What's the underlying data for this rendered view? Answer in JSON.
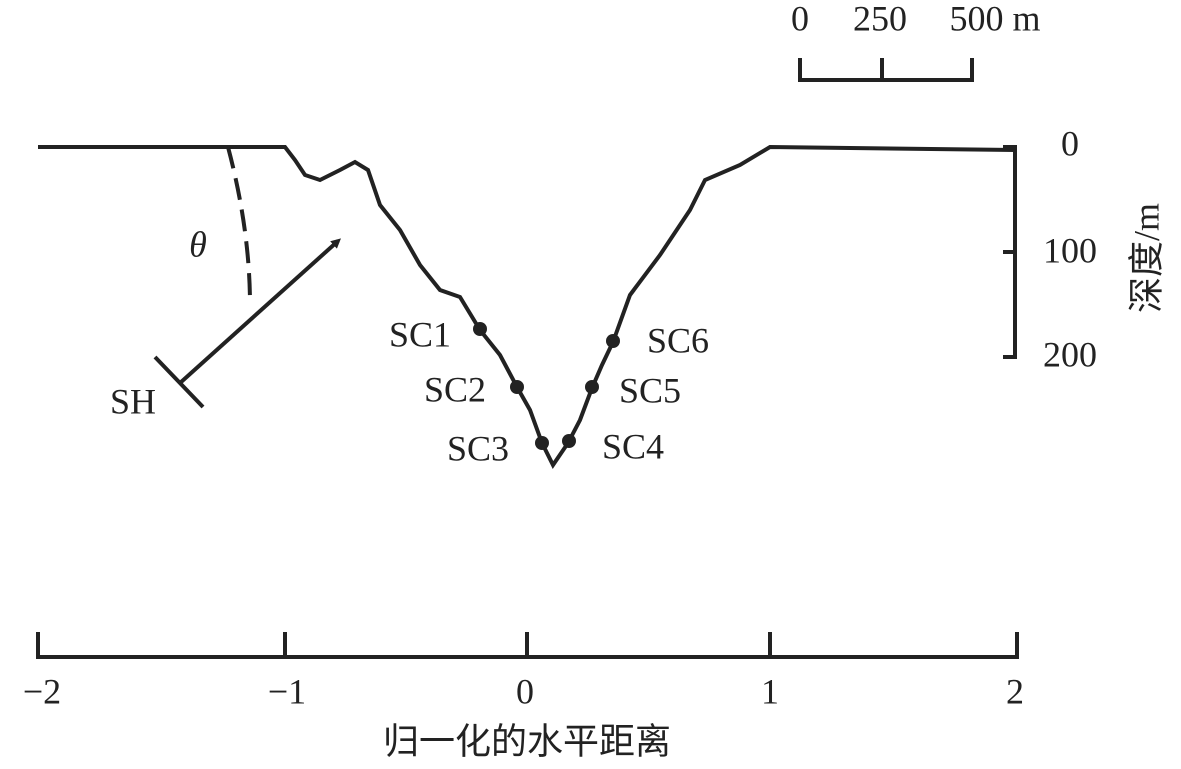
{
  "scale_bar": {
    "labels": [
      "0",
      "250",
      "500 m"
    ]
  },
  "x_axis": {
    "ticks": [
      "−2",
      "−1",
      "0",
      "1",
      "2"
    ],
    "title": "归一化的水平距离"
  },
  "depth_axis": {
    "ticks": [
      "0",
      "100",
      "200"
    ],
    "title": "深度/m"
  },
  "stations": [
    "SC1",
    "SC2",
    "SC3",
    "SC4",
    "SC5",
    "SC6"
  ],
  "source": "SH",
  "angle": "θ"
}
